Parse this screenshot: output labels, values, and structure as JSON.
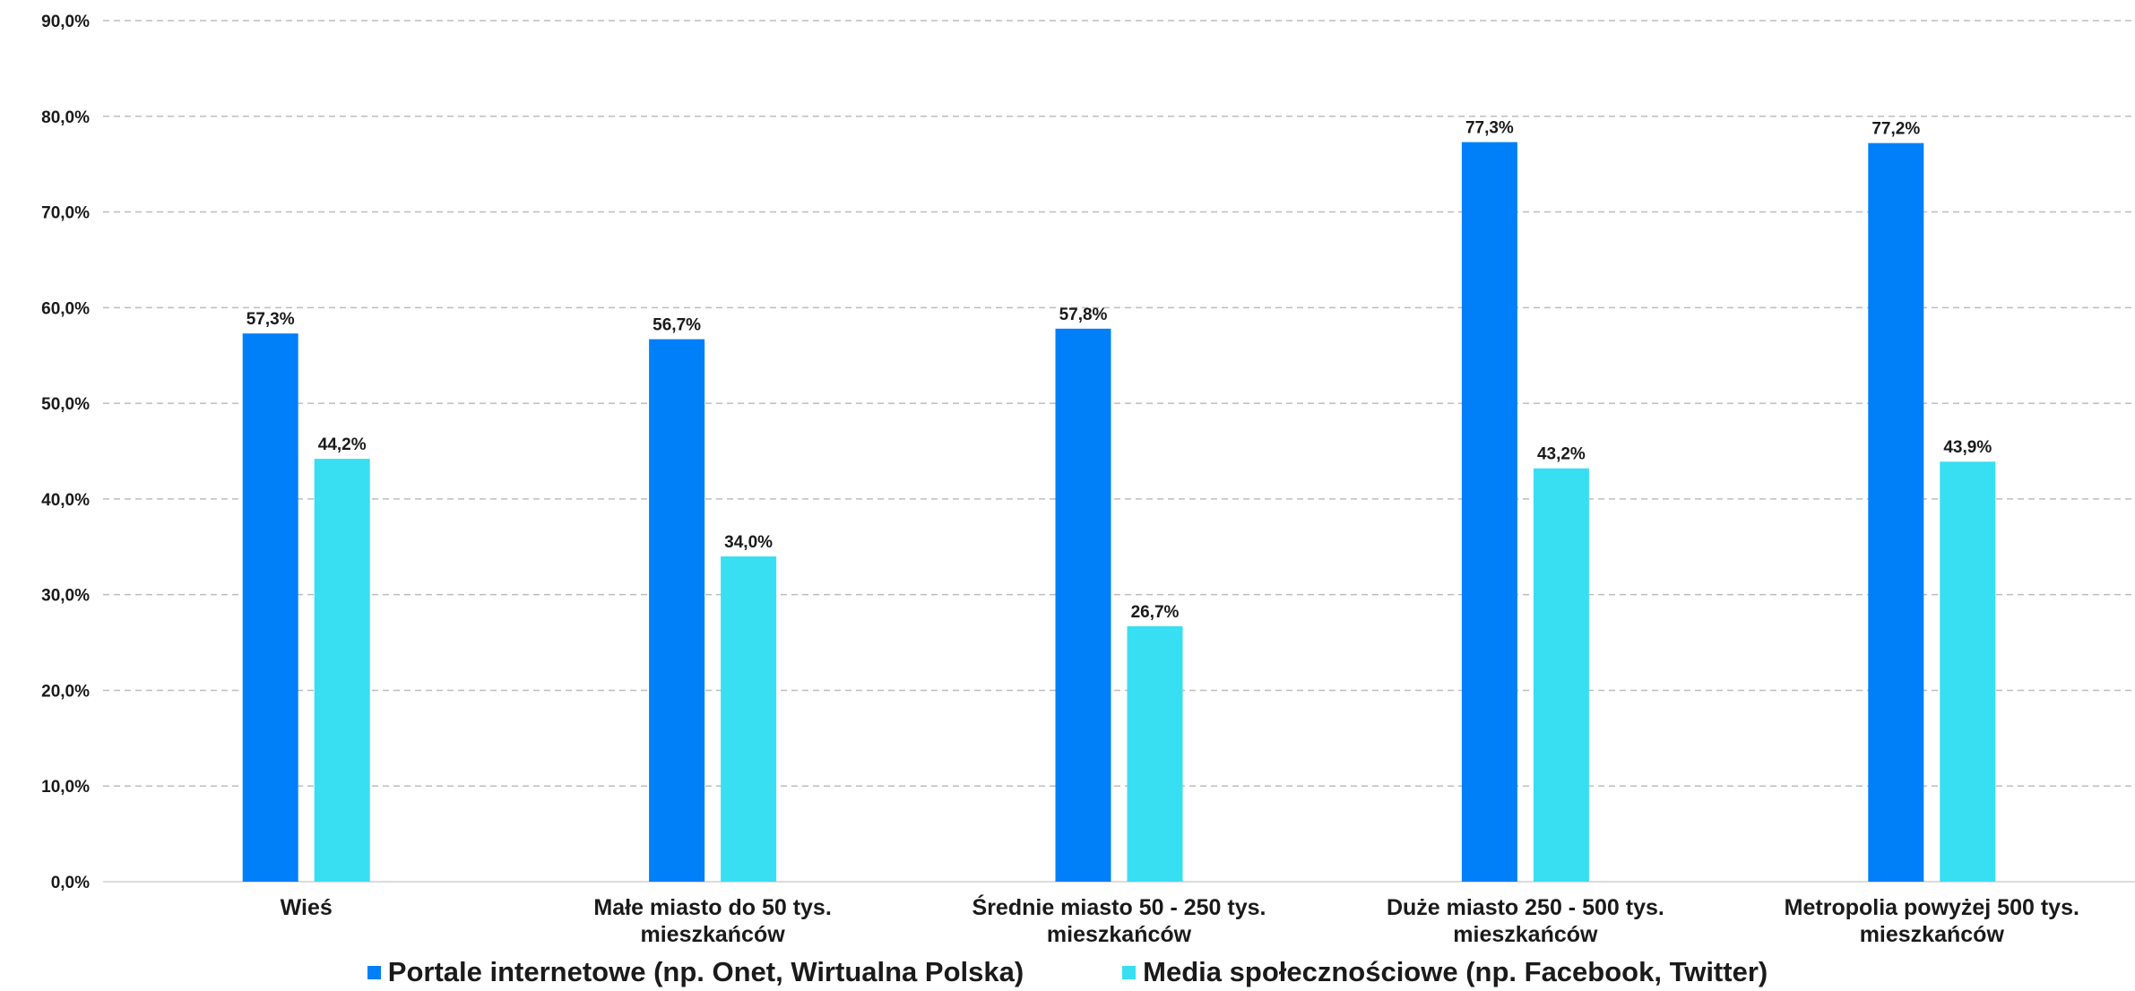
{
  "chart_data": {
    "type": "bar",
    "categories": [
      [
        "Wieś"
      ],
      [
        "Małe miasto do 50 tys.",
        "mieszkańców"
      ],
      [
        "Średnie miasto 50 - 250 tys.",
        "mieszkańców"
      ],
      [
        "Duże miasto 250 - 500 tys.",
        "mieszkańców"
      ],
      [
        "Metropolia powyżej 500 tys.",
        "mieszkańców"
      ]
    ],
    "series": [
      {
        "name": "Portale internetowe (np. Onet, Wirtualna Polska)",
        "color": "#0080f8",
        "values": [
          57.3,
          56.7,
          57.8,
          77.3,
          77.2
        ],
        "labels": [
          "57,3%",
          "56,7%",
          "57,8%",
          "77,3%",
          "77,2%"
        ]
      },
      {
        "name": "Media społecznościowe (np. Facebook, Twitter)",
        "color": "#38dff2",
        "values": [
          44.2,
          34.0,
          26.7,
          43.2,
          43.9
        ],
        "labels": [
          "44,2%",
          "34,0%",
          "26,7%",
          "43,2%",
          "43,9%"
        ]
      }
    ],
    "ylim": [
      0,
      90
    ],
    "yticks": [
      0,
      10,
      20,
      30,
      40,
      50,
      60,
      70,
      80,
      90
    ],
    "ytick_labels": [
      "0,0%",
      "10,0%",
      "20,0%",
      "30,0%",
      "40,0%",
      "50,0%",
      "60,0%",
      "70,0%",
      "80,0%",
      "90,0%"
    ],
    "grid": true,
    "legend_position": "bottom"
  }
}
